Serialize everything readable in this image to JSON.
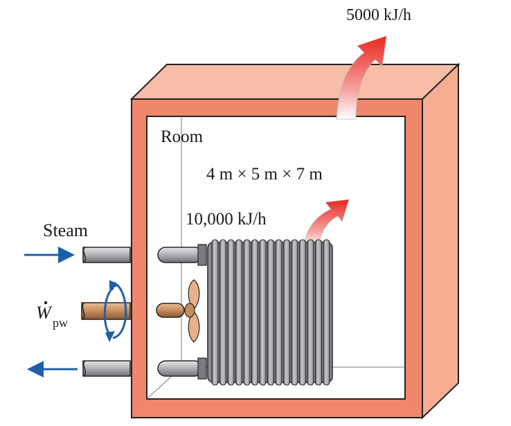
{
  "labels": {
    "heat_loss": "5000 kJ/h",
    "room": "Room",
    "dimensions": "4 m × 5 m × 7 m",
    "heater_output": "10,000 kJ/h",
    "steam": "Steam",
    "work_symbol": "W",
    "work_subscript": "pw"
  },
  "colors": {
    "wall_front": "#f0866a",
    "wall_top": "#f8bda6",
    "wall_side": "#f6ad92",
    "room_interior": "#ffffff",
    "pipe_gray": "#a8aaad",
    "shaft_copper": "#c68c5c",
    "fan_blade": "#e8b088",
    "flow_arrow": "#1f5fa8",
    "heat_arrow": "#e8261e"
  },
  "icons": {
    "heat_arrow": "curved-up-arrow",
    "radiator": "finned-radiator",
    "fan": "propeller-fan",
    "rotation": "circular-rotation-arrow"
  }
}
